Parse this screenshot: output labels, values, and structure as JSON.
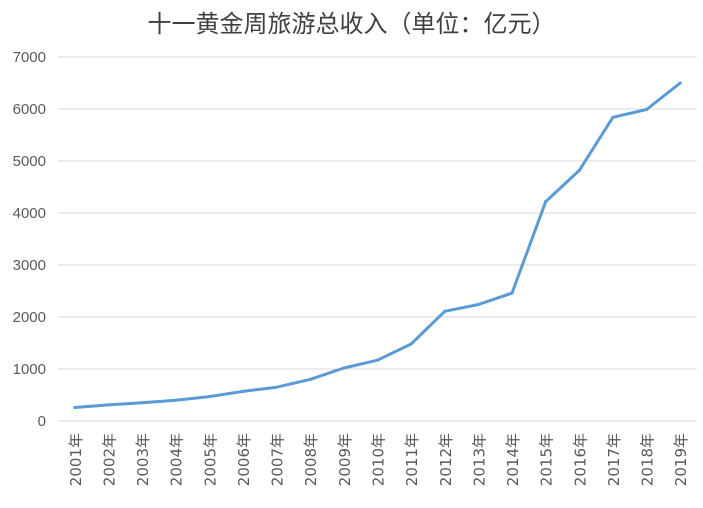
{
  "chart_data": {
    "type": "line",
    "title": "十一黄金周旅游总收入（单位：亿元）",
    "xlabel": "",
    "ylabel": "",
    "categories": [
      "2001年",
      "2002年",
      "2003年",
      "2004年",
      "2005年",
      "2006年",
      "2007年",
      "2008年",
      "2009年",
      "2010年",
      "2011年",
      "2012年",
      "2013年",
      "2014年",
      "2015年",
      "2016年",
      "2017年",
      "2018年",
      "2019年"
    ],
    "series": [
      {
        "values": [
          260,
          310,
          350,
          400,
          470,
          570,
          650,
          800,
          1020,
          1170,
          1480,
          2110,
          2240,
          2460,
          4220,
          4820,
          5840,
          5990,
          6500
        ]
      }
    ],
    "ylim": [
      0,
      7000
    ],
    "yticks": [
      0,
      1000,
      2000,
      3000,
      4000,
      5000,
      6000,
      7000
    ],
    "grid": true,
    "line_color": "#5B9BD5",
    "grid_color": "#D9D9D9"
  }
}
